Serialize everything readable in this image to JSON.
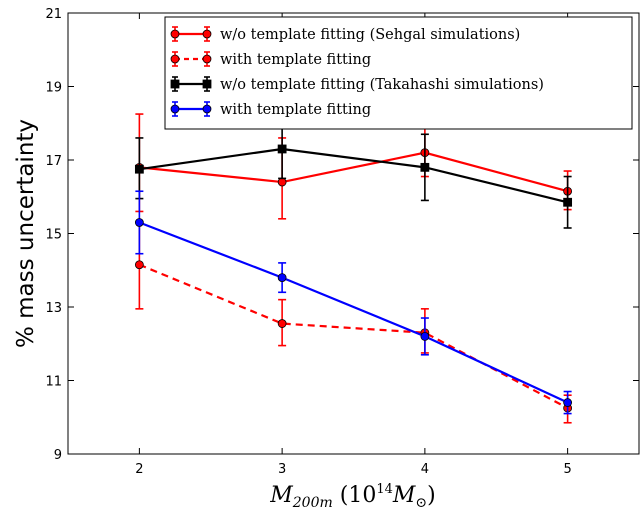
{
  "chart_data": {
    "type": "line",
    "xlabel": "M_200m (10^14 M_⊙)",
    "ylabel": "% mass uncertainty",
    "xlim": [
      1.5,
      5.5
    ],
    "ylim": [
      9,
      21
    ],
    "xticks": [
      2,
      3,
      4,
      5
    ],
    "yticks": [
      9,
      11,
      13,
      15,
      17,
      19,
      21
    ],
    "x": [
      2,
      3,
      4,
      5
    ],
    "legend_position": "top-right",
    "series": [
      {
        "name": "w/o template fitting (Sehgal simulations)",
        "color": "#ff0000",
        "linestyle": "solid",
        "marker": "circle",
        "values": [
          16.8,
          16.4,
          17.2,
          16.15
        ],
        "err_low": [
          1.2,
          1.0,
          0.65,
          0.5
        ],
        "err_high": [
          1.45,
          1.2,
          0.85,
          0.55
        ]
      },
      {
        "name": "with template fitting",
        "color": "#ff0000",
        "linestyle": "dashed",
        "marker": "circle",
        "values": [
          14.15,
          12.55,
          12.3,
          10.25
        ],
        "err_low": [
          1.2,
          0.6,
          0.55,
          0.4
        ],
        "err_high": [
          1.15,
          0.65,
          0.65,
          0.35
        ]
      },
      {
        "name": "w/o template fitting (Takahashi simulations)",
        "color": "#000000",
        "linestyle": "solid",
        "marker": "square",
        "values": [
          16.75,
          17.3,
          16.8,
          15.85
        ],
        "err_low": [
          0.8,
          0.8,
          0.9,
          0.7
        ],
        "err_high": [
          0.85,
          0.8,
          0.9,
          0.7
        ]
      },
      {
        "name": "with template fitting",
        "color": "#0000ff",
        "linestyle": "solid",
        "marker": "circle",
        "values": [
          15.3,
          13.8,
          12.2,
          10.4
        ],
        "err_low": [
          0.85,
          0.4,
          0.5,
          0.3
        ],
        "err_high": [
          0.85,
          0.4,
          0.5,
          0.3
        ]
      }
    ]
  }
}
